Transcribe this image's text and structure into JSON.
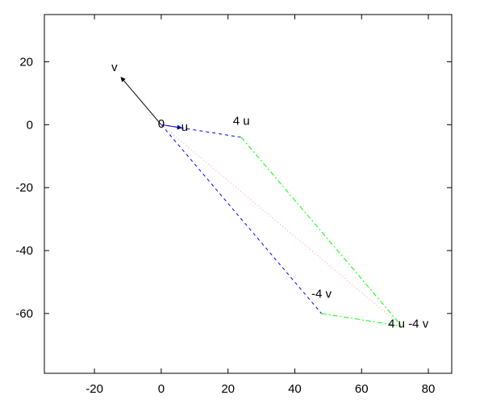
{
  "chart_data": {
    "type": "line",
    "title": "",
    "xlabel": "",
    "ylabel": "",
    "xlim": [
      -35,
      87
    ],
    "ylim": [
      -79,
      35
    ],
    "x_ticks": [
      -20,
      0,
      20,
      40,
      60,
      80
    ],
    "y_ticks": [
      20,
      0,
      -20,
      -40,
      -60
    ],
    "grid": false,
    "series": [
      {
        "style": "solid",
        "color": "#000000",
        "arrow": true,
        "points": [
          [
            0,
            0
          ],
          [
            -12,
            15
          ]
        ]
      },
      {
        "style": "solid",
        "color": "#00008b",
        "arrow": true,
        "points": [
          [
            0,
            0
          ],
          [
            6,
            -1
          ]
        ]
      },
      {
        "style": "dashed",
        "color": "#0000ff",
        "points": [
          [
            0,
            0
          ],
          [
            24,
            -4
          ]
        ]
      },
      {
        "style": "dashed",
        "color": "#0000ff",
        "points": [
          [
            0,
            0
          ],
          [
            48,
            -60
          ]
        ]
      },
      {
        "style": "dashdot",
        "color": "#00ff00",
        "points": [
          [
            24,
            -4
          ],
          [
            72,
            -64
          ]
        ]
      },
      {
        "style": "dashdot",
        "color": "#00ff00",
        "points": [
          [
            48,
            -60
          ],
          [
            72,
            -64
          ]
        ]
      },
      {
        "style": "dotted",
        "color": "#ff9999",
        "points": [
          [
            0,
            0
          ],
          [
            72,
            -64
          ]
        ]
      }
    ],
    "annotations": [
      {
        "text": "v",
        "x": -14,
        "y": 17,
        "anchor": "middle"
      },
      {
        "text": "0",
        "x": 0,
        "y": -1,
        "anchor": "middle"
      },
      {
        "text": "u",
        "x": 7,
        "y": -2,
        "anchor": "middle"
      },
      {
        "text": "4 u",
        "x": 24,
        "y": 0,
        "anchor": "middle"
      },
      {
        "text": "-4 v",
        "x": 48,
        "y": -55,
        "anchor": "middle"
      },
      {
        "text": "4 u -4 v",
        "x": 74,
        "y": -64.5,
        "anchor": "middle"
      }
    ]
  }
}
